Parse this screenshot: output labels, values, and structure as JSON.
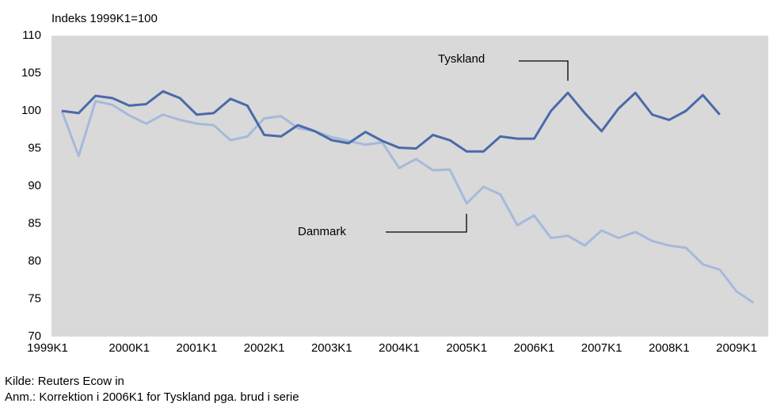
{
  "chart_data": {
    "type": "line",
    "y_label": "Indeks 1999K1=100",
    "categories": [
      "1999K1",
      null,
      null,
      null,
      "2000K1",
      null,
      null,
      null,
      "2001K1",
      null,
      null,
      null,
      "2002K1",
      null,
      null,
      null,
      "2003K1",
      null,
      null,
      null,
      "2004K1",
      null,
      null,
      null,
      "2005K1",
      null,
      null,
      null,
      "2006K1",
      null,
      null,
      null,
      "2007K1",
      null,
      null,
      null,
      "2008K1",
      null,
      null,
      null,
      "2009K1",
      null
    ],
    "series": [
      {
        "name": "Tyskland",
        "color": "#4a6aa8",
        "values": [
          100,
          99.7,
          102,
          101.7,
          100.7,
          100.9,
          102.6,
          101.7,
          99.5,
          99.7,
          101.6,
          100.7,
          96.8,
          96.6,
          98.1,
          97.3,
          96.1,
          95.7,
          97.2,
          96,
          95.1,
          95,
          96.8,
          96.1,
          94.6,
          94.6,
          96.6,
          96.3,
          96.3,
          100,
          102.4,
          99.7,
          97.3,
          100.3,
          102.4,
          99.5,
          98.8,
          100,
          102.1,
          99.5,
          null,
          null
        ]
      },
      {
        "name": "Danmark",
        "color": "#a6b9dc",
        "values": [
          100,
          94,
          101.3,
          100.8,
          99.4,
          98.3,
          99.5,
          98.8,
          98.3,
          98.1,
          96.1,
          96.6,
          99,
          99.3,
          97.7,
          97.3,
          96.5,
          96,
          95.5,
          95.8,
          92.4,
          93.6,
          92.1,
          92.2,
          87.7,
          89.9,
          88.9,
          84.8,
          86.1,
          83.1,
          83.4,
          82.1,
          84.1,
          83.1,
          83.9,
          82.7,
          82.1,
          81.8,
          79.6,
          78.9,
          76,
          74.5
        ]
      }
    ],
    "ylim": [
      70,
      110
    ],
    "yticks": [
      70,
      75,
      80,
      85,
      90,
      95,
      100,
      105,
      110
    ],
    "plot_background": "#d9d9d9",
    "notes": [
      "Kilde: Reuters Ecow in",
      "Anm.: Korrektion i 2006K1 for Tyskland pga. brud i serie"
    ]
  }
}
